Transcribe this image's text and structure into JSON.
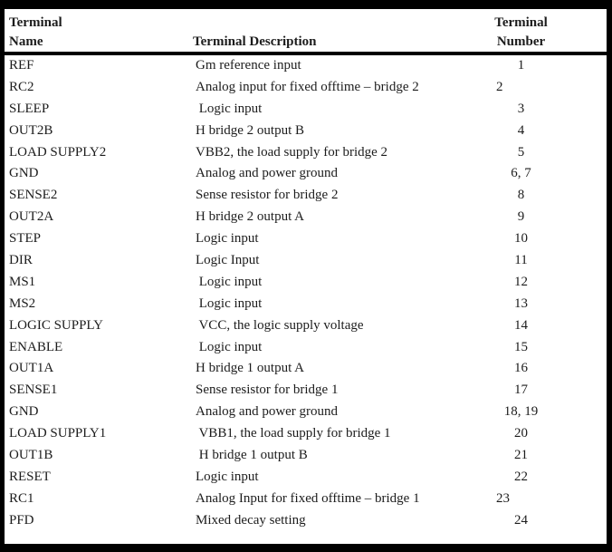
{
  "colors": {
    "frame_border": "#000000",
    "background": "#ffffff",
    "text": "#1c1c1c"
  },
  "table": {
    "header": {
      "col1_line1": "Terminal",
      "col1_line2": "Name",
      "col2_line1": "",
      "col2_line2": "Terminal Description",
      "col3_line1": "Terminal",
      "col3_line2": "Number"
    },
    "rows": [
      {
        "name": "REF",
        "description": "Gm reference input",
        "number": "1",
        "number_align": "center"
      },
      {
        "name": "RC2",
        "description": "Analog input for fixed offtime – bridge 2",
        "number": "2",
        "number_align": "left"
      },
      {
        "name": "SLEEP",
        "description": " Logic input",
        "number": "3",
        "number_align": "center"
      },
      {
        "name": "OUT2B",
        "description": "H bridge 2 output B",
        "number": "4",
        "number_align": "center"
      },
      {
        "name": "LOAD SUPPLY2",
        "description": "VBB2, the load supply for bridge 2",
        "number": "5",
        "number_align": "center"
      },
      {
        "name": "GND",
        "description": "Analog and power ground",
        "number": "6, 7",
        "number_align": "center"
      },
      {
        "name": "SENSE2",
        "description": "Sense resistor for bridge 2",
        "number": "8",
        "number_align": "center"
      },
      {
        "name": "OUT2A",
        "description": "H bridge 2 output A",
        "number": "9",
        "number_align": "center"
      },
      {
        "name": "STEP",
        "description": "Logic input",
        "number": "10",
        "number_align": "center"
      },
      {
        "name": "DIR",
        "description": "Logic Input",
        "number": "11",
        "number_align": "center"
      },
      {
        "name": "MS1",
        "description": " Logic input",
        "number": "12",
        "number_align": "center"
      },
      {
        "name": "MS2",
        "description": " Logic input",
        "number": "13",
        "number_align": "center"
      },
      {
        "name": "LOGIC SUPPLY",
        "description": " VCC, the logic supply voltage",
        "number": "14",
        "number_align": "center"
      },
      {
        "name": "ENABLE",
        "description": " Logic input",
        "number": "15",
        "number_align": "center"
      },
      {
        "name": "OUT1A",
        "description": "H bridge 1 output A",
        "number": "16",
        "number_align": "center"
      },
      {
        "name": "SENSE1",
        "description": "Sense resistor for bridge 1",
        "number": "17",
        "number_align": "center"
      },
      {
        "name": "GND",
        "description": "Analog and power ground",
        "number": "18, 19",
        "number_align": "center"
      },
      {
        "name": "LOAD SUPPLY1",
        "description": " VBB1, the load supply for bridge 1",
        "number": "20",
        "number_align": "center"
      },
      {
        "name": "OUT1B",
        "description": " H bridge 1 output B",
        "number": "21",
        "number_align": "center"
      },
      {
        "name": "RESET",
        "description": "Logic input",
        "number": "22",
        "number_align": "center"
      },
      {
        "name": "RC1",
        "description": "Analog Input for fixed offtime – bridge 1",
        "number": "23",
        "number_align": "left"
      },
      {
        "name": "PFD",
        "description": "Mixed decay setting",
        "number": "24",
        "number_align": "center"
      }
    ]
  }
}
